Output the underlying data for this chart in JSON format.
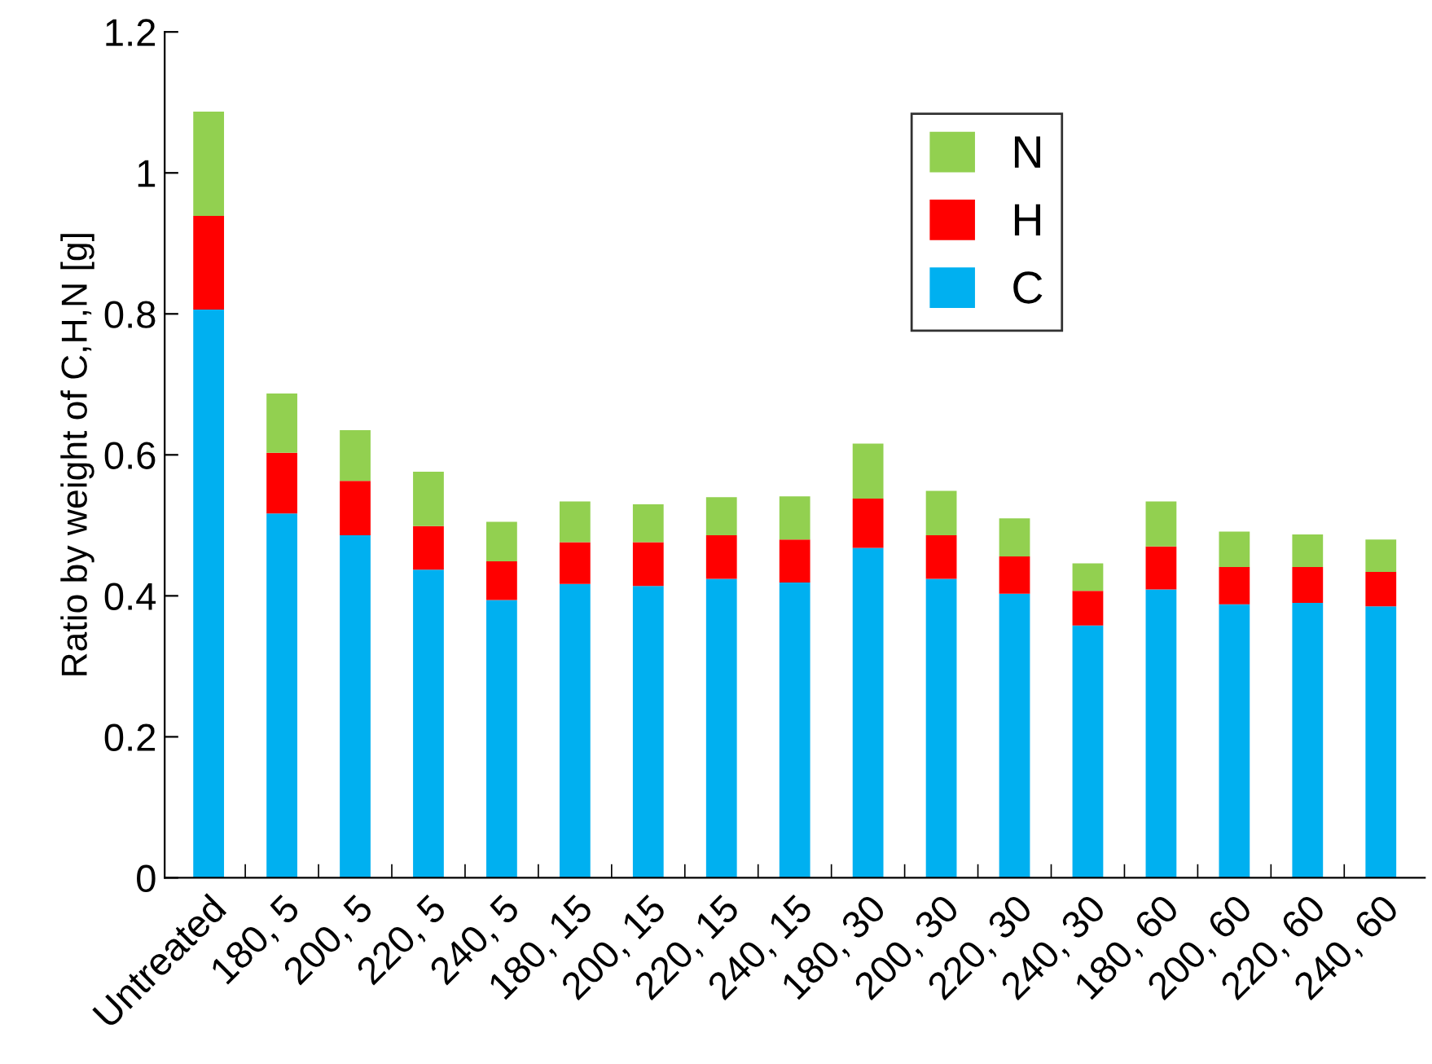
{
  "chart_data": {
    "type": "bar",
    "stacked": true,
    "ylabel": "Ratio by weight of C,H,N [g]",
    "categories": [
      "Untreated",
      "180, 5",
      "200, 5",
      "220, 5",
      "240, 5",
      "180, 15",
      "200, 15",
      "220, 15",
      "240, 15",
      "180, 30",
      "200, 30",
      "220, 30",
      "240, 30",
      "180, 60",
      "200, 60",
      "220, 60",
      "240, 60"
    ],
    "series": [
      {
        "name": "C",
        "color": "#00b0f0",
        "values": [
          0.806,
          0.517,
          0.486,
          0.437,
          0.394,
          0.417,
          0.414,
          0.424,
          0.419,
          0.468,
          0.424,
          0.403,
          0.358,
          0.409,
          0.388,
          0.39,
          0.385
        ]
      },
      {
        "name": "H",
        "color": "#ff0000",
        "values": [
          0.133,
          0.086,
          0.077,
          0.062,
          0.055,
          0.059,
          0.062,
          0.062,
          0.061,
          0.07,
          0.062,
          0.053,
          0.049,
          0.061,
          0.053,
          0.051,
          0.049
        ]
      },
      {
        "name": "N",
        "color": "#92d050",
        "values": [
          0.148,
          0.084,
          0.072,
          0.077,
          0.056,
          0.058,
          0.054,
          0.054,
          0.061,
          0.078,
          0.063,
          0.054,
          0.039,
          0.064,
          0.05,
          0.046,
          0.046
        ]
      }
    ],
    "ylim": [
      0,
      1.2
    ],
    "yticks": [
      0,
      0.2,
      0.4,
      0.6,
      0.8,
      1,
      1.2
    ],
    "grid": false,
    "legend": "top right"
  }
}
